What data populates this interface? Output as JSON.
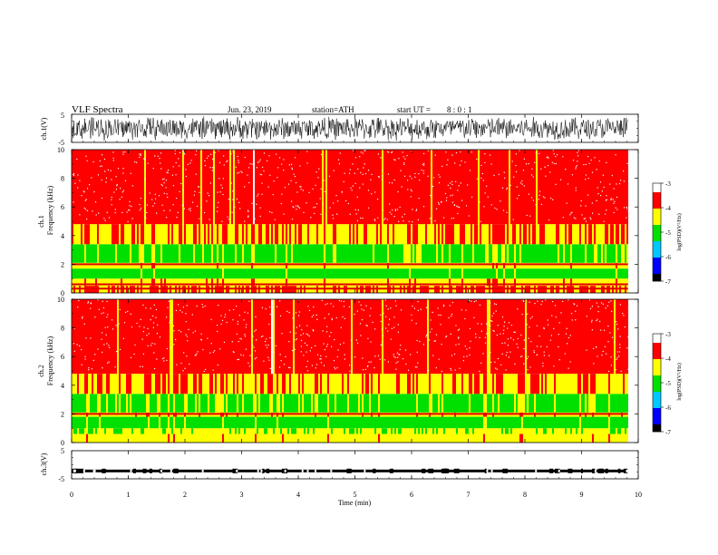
{
  "header": {
    "title": "VLF  Spectra",
    "date": "Jun. 23, 2019",
    "station": "station=ATH",
    "start_label": "start  UT  =",
    "start_value": "8 : 0  : 1"
  },
  "colors": {
    "spectrum_scale": [
      "#000000",
      "#0000ff",
      "#00c8ff",
      "#00e000",
      "#ffff00",
      "#ff0000",
      "#ffffff"
    ],
    "waveform": "#000000",
    "background": "#ffffff"
  },
  "chart_data": [
    {
      "type": "line",
      "panel": "ch1-waveform",
      "ylabel": "ch.1(V)",
      "ylim": [
        -5,
        5
      ],
      "yticks": [
        "5",
        "-5"
      ],
      "xlim": [
        0,
        10
      ],
      "description_values": {
        "amplitude_min": -4.5,
        "amplitude_max": 4.5,
        "end_time_min": 9.82
      }
    },
    {
      "type": "heatmap",
      "panel": "ch1-spectrogram",
      "ylabel_line1": "ch.1",
      "ylabel_line2": "Frequency  (kHz)",
      "yticks": [
        "0",
        "2",
        "4",
        "6",
        "8",
        "10"
      ],
      "ylim": [
        0,
        10
      ],
      "xlim": [
        0,
        10
      ],
      "end_time_min": 9.82,
      "colorbar": {
        "label": "log(PSD)(V²/Hz)",
        "ticks": [
          "-3",
          "-4",
          "-5",
          "-6",
          "-7"
        ],
        "range": [
          -7,
          -3
        ]
      },
      "bands": [
        {
          "from": 0.0,
          "to": 0.5,
          "level": -4.0
        },
        {
          "from": 0.5,
          "to": 1.0,
          "level": -4.2
        },
        {
          "from": 1.0,
          "to": 1.7,
          "level": -5.0
        },
        {
          "from": 1.7,
          "to": 2.1,
          "level": -4.3
        },
        {
          "from": 2.1,
          "to": 3.4,
          "level": -4.8
        },
        {
          "from": 3.4,
          "to": 4.8,
          "level": -4.05
        },
        {
          "from": 4.8,
          "to": 10.0,
          "level": -3.8
        }
      ],
      "lines_khz": [
        0.3,
        0.6,
        2.0
      ]
    },
    {
      "type": "heatmap",
      "panel": "ch2-spectrogram",
      "ylabel_line1": "ch.2",
      "ylabel_line2": "Frequency  (kHz)",
      "yticks": [
        "0",
        "2",
        "4",
        "6",
        "8",
        "10"
      ],
      "ylim": [
        0,
        10
      ],
      "xlim": [
        0,
        10
      ],
      "end_time_min": 9.82,
      "colorbar": {
        "label": "log(PSD)(V²/Hz)",
        "ticks": [
          "-3",
          "-4",
          "-5",
          "-6",
          "-7"
        ],
        "range": [
          -7,
          -3
        ]
      },
      "bands": [
        {
          "from": 0.0,
          "to": 0.6,
          "level": -4.4
        },
        {
          "from": 0.6,
          "to": 1.0,
          "level": -4.6
        },
        {
          "from": 1.0,
          "to": 1.8,
          "level": -5.0
        },
        {
          "from": 1.8,
          "to": 2.1,
          "level": -4.2
        },
        {
          "from": 2.1,
          "to": 3.4,
          "level": -4.8
        },
        {
          "from": 3.4,
          "to": 4.8,
          "level": -4.05
        },
        {
          "from": 4.8,
          "to": 10.0,
          "level": -3.8
        }
      ],
      "lines_khz": [
        2.0
      ]
    },
    {
      "type": "line",
      "panel": "ch3-waveform",
      "ylabel": "ch.3(V)",
      "ylim": [
        -5,
        5
      ],
      "yticks": [
        "5",
        "-5"
      ],
      "xlim": [
        0,
        10
      ],
      "description_values": {
        "level_v": -2.2,
        "end_time_min": 9.82
      }
    }
  ],
  "xaxis": {
    "label": "Time  (min)",
    "ticks": [
      "0",
      "1",
      "2",
      "3",
      "4",
      "5",
      "6",
      "7",
      "8",
      "9",
      "10"
    ]
  }
}
